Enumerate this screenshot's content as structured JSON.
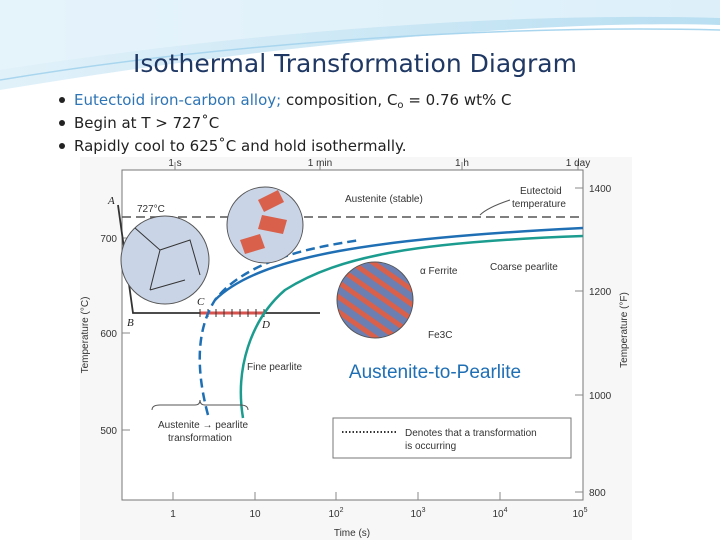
{
  "slide": {
    "title": "Isothermal Transformation Diagram",
    "bullets": [
      {
        "highlight": "Eutectoid iron-carbon alloy;",
        "text": " composition, C",
        "subscript": "o",
        "rest": " = 0.76 wt% C"
      },
      {
        "text": "Begin at T > 727˚C"
      },
      {
        "text": "Rapidly cool to 625˚C and hold isothermally."
      }
    ]
  },
  "diagram": {
    "top_time_labels": [
      "1 s",
      "1 min",
      "1 h",
      "1 day"
    ],
    "celsius_ticks": [
      "700",
      "600",
      "500"
    ],
    "fahrenheit_ticks": [
      "1400",
      "1200",
      "1000",
      "800"
    ],
    "time_ticks": [
      {
        "base": "1"
      },
      {
        "base": "10"
      },
      {
        "base": "10",
        "exp": "2"
      },
      {
        "base": "10",
        "exp": "3"
      },
      {
        "base": "10",
        "exp": "4"
      },
      {
        "base": "10",
        "exp": "5"
      }
    ],
    "x_label": "Time (s)",
    "y_label": "Temperature (°C)",
    "y2_label": "Temperature (°F)",
    "eutectoid_label": "727°C",
    "points": [
      "A",
      "B",
      "C",
      "D"
    ],
    "labels": {
      "austenite_stable": "Austenite (stable)",
      "eutectoid_temp": [
        "Eutectoid",
        "temperature"
      ],
      "coarse": "Coarse pearlite",
      "ferrite": "α Ferrite",
      "fe3c": "Fe3C",
      "fine": "Fine pearlite",
      "transformation": [
        "Austenite → pearlite",
        "transformation"
      ],
      "legend": [
        "Denotes that a transformation",
        "is occurring"
      ]
    },
    "caption": "Austenite-to-Pearlite"
  }
}
